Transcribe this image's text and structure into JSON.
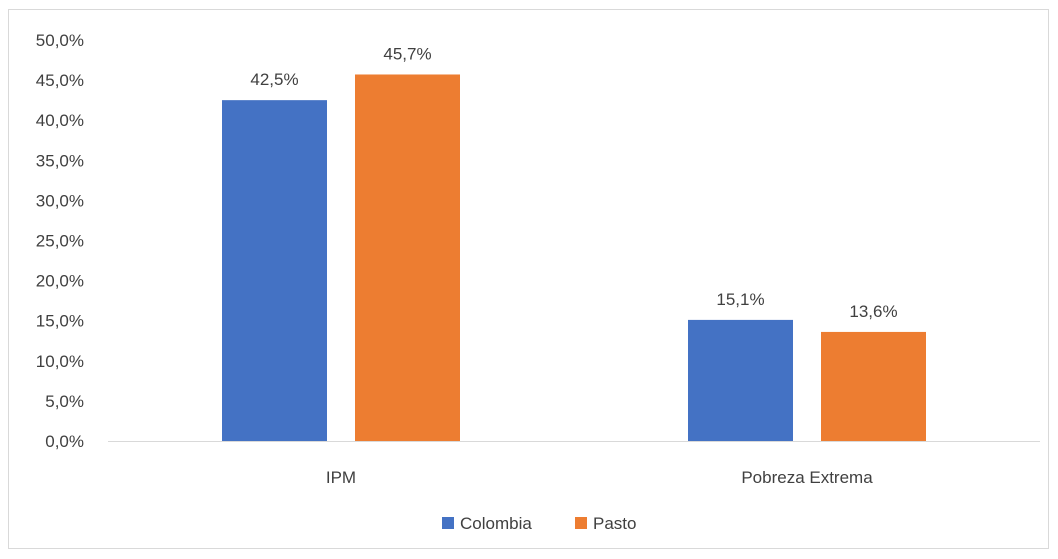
{
  "chart_data": {
    "type": "bar",
    "categories": [
      "IPM",
      "Pobreza Extrema"
    ],
    "series": [
      {
        "name": "Colombia",
        "values": [
          42.5,
          15.1
        ],
        "labels": [
          "42,5%",
          "15,1%"
        ],
        "color": "#4472c4"
      },
      {
        "name": "Pasto",
        "values": [
          45.7,
          13.6
        ],
        "labels": [
          "45,7%",
          "13,6%"
        ],
        "color": "#ed7d31"
      }
    ],
    "ylim": [
      0,
      50
    ],
    "yticks": [
      "0,0%",
      "5,0%",
      "10,0%",
      "15,0%",
      "20,0%",
      "25,0%",
      "30,0%",
      "35,0%",
      "40,0%",
      "45,0%",
      "50,0%"
    ],
    "title": "",
    "xlabel": "",
    "ylabel": "",
    "grid": false,
    "legend": "bottom"
  }
}
